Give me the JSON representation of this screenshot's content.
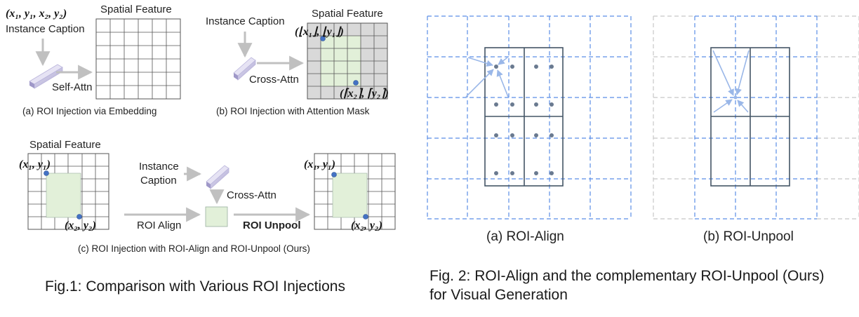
{
  "fig1": {
    "caption": "Fig.1: Comparison with Various ROI Injections",
    "panel_a": {
      "coords": "(x₁, y₁, x₂, y₂)",
      "instance_caption": "Instance Caption",
      "spatial_feature": "Spatial Feature",
      "self_attn": "Self-Attn",
      "caption": "(a) ROI Injection via Embedding"
    },
    "panel_b": {
      "instance_caption": "Instance Caption",
      "spatial_feature": "Spatial Feature",
      "top_left": "(⌊x₁⌋, ⌊y₁⌋)",
      "bottom_right": "(⌈x₂⌉, ⌈y₂⌉)",
      "cross_attn": "Cross-Attn",
      "caption": "(b) ROI Injection with Attention Mask"
    },
    "panel_c": {
      "spatial_feature": "Spatial Feature",
      "top_left": "(x₁, y₁)",
      "bottom_right": "(x₂, y₂)",
      "instance_caption_line1": "Instance",
      "instance_caption_line2": "Caption",
      "cross_attn": "Cross-Attn",
      "roi_align": "ROI Align",
      "roi_unpool": "ROI Unpool",
      "out_top_left": "(x₁, y₁)",
      "out_bottom_right": "(x₂, y₂)",
      "caption": "(c) ROI Injection with ROI-Align and ROI-Unpool (Ours)"
    }
  },
  "fig2": {
    "caption_line1": "Fig. 2: ROI-Align and the complementary ROI-Unpool (Ours)",
    "caption_line2": "for Visual Generation",
    "panel_a_caption": "(a) ROI-Align",
    "panel_b_caption": "(b) ROI-Unpool"
  },
  "colors": {
    "grid_line": "#555555",
    "roi_fill": "#e2f0d9",
    "masked_fill": "#d9d9d9",
    "point": "#4472c4",
    "dashed_grid": "#5b8ee6",
    "faded_grid": "#c8c8c8",
    "sample_point": "#6a7a90",
    "arrow": "#9ab7e8",
    "roi_box": "#445566"
  }
}
